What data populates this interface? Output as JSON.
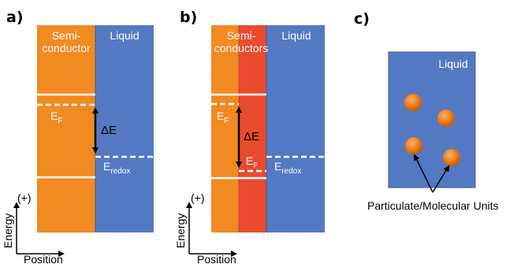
{
  "panels": {
    "a": {
      "label": "a)",
      "semiconductor_label_line1": "Semi-",
      "semiconductor_label_line2": "conductor",
      "liquid_label": "Liquid",
      "fermi_label": "E",
      "fermi_sub": "F",
      "redox_label": "E",
      "redox_sub": "redox",
      "delta_label": "ΔE"
    },
    "b": {
      "label": "b)",
      "semiconductor_label_line1": "Semi-",
      "semiconductor_label_line2": "conductors",
      "liquid_label": "Liquid",
      "fermi_label": "E",
      "fermi_sub": "F",
      "fermi2_label": "E",
      "fermi2_sub": "F",
      "redox_label": "E",
      "redox_sub": "redox",
      "delta_label": "ΔE"
    },
    "c": {
      "label": "c)",
      "liquid_label": "Liquid",
      "caption": "Particulate/Molecular Units"
    }
  },
  "axes": {
    "energy_label": "Energy",
    "plus_label": "(+)",
    "position_label": "Position"
  },
  "colors": {
    "orange": "#f28a22",
    "red": "#ea4a2e",
    "blue": "#5479c3",
    "particle": "#f07b16"
  }
}
